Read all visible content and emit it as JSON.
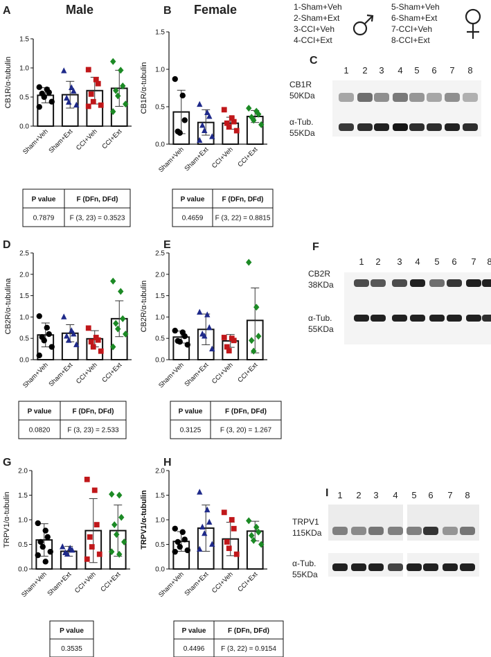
{
  "headers": {
    "male": "Male",
    "female": "Female"
  },
  "legend": {
    "groups": [
      "1-Sham+Veh",
      "2-Sham+Ext",
      "3-CCI+Veh",
      "4-CCI+Ext",
      "5-Sham+Veh",
      "6-Sham+Ext",
      "7-CCI+Veh",
      "8-CCI+Ext"
    ],
    "male_symbol": "♂",
    "female_symbol": "♀"
  },
  "colors": {
    "sham_veh": "#000000",
    "sham_ext": "#1f2a8a",
    "cci_veh": "#c0171a",
    "cci_ext": "#1c8a25"
  },
  "chart_data": [
    {
      "panel": "A",
      "type": "bar",
      "ylabel": "CB1R/α-tubulin",
      "ylim": [
        0,
        1.5
      ],
      "yticks": [
        "0.0",
        "0.5",
        "1.0",
        "1.5"
      ],
      "categories": [
        "Sham+Veh",
        "Sham+Ext",
        "CCI+Veh",
        "CCI+Ext"
      ],
      "means": [
        0.53,
        0.54,
        0.61,
        0.65
      ],
      "sd": [
        0.13,
        0.23,
        0.23,
        0.31
      ],
      "points": [
        [
          0.67,
          0.63,
          0.58,
          0.56,
          0.5,
          0.42,
          0.33
        ],
        [
          0.95,
          0.66,
          0.6,
          0.48,
          0.41,
          0.36
        ],
        [
          0.97,
          0.8,
          0.73,
          0.55,
          0.42,
          0.36,
          0.34
        ],
        [
          1.11,
          0.96,
          0.69,
          0.61,
          0.52,
          0.38,
          0.25
        ]
      ],
      "stats": {
        "p_header": "P value",
        "f_header": "F (DFn, DFd)",
        "p": "0.7879",
        "f": "F (3, 23) = 0.3523"
      }
    },
    {
      "panel": "B",
      "type": "bar",
      "ylabel": "CB1R/α-tubulin",
      "ylim": [
        0,
        1.5
      ],
      "yticks": [
        "0.0",
        "0.5",
        "1.0",
        "1.5"
      ],
      "categories": [
        "Sham+Veh",
        "Sham+Ext",
        "CCI+Veh",
        "CCI+Ext"
      ],
      "means": [
        0.43,
        0.29,
        0.28,
        0.37
      ],
      "sd": [
        0.29,
        0.17,
        0.08,
        0.08
      ],
      "points": [
        [
          0.87,
          0.65,
          0.32,
          0.17,
          0.15
        ],
        [
          0.53,
          0.42,
          0.37,
          0.25,
          0.18,
          0.1,
          0.05
        ],
        [
          0.46,
          0.35,
          0.3,
          0.28,
          0.23,
          0.18
        ],
        [
          0.48,
          0.44,
          0.4,
          0.36,
          0.32,
          0.26
        ]
      ],
      "stats": {
        "p_header": "P value",
        "f_header": "F (DFn, DFd)",
        "p": "0.4659",
        "f": "F (3, 22) = 0.8815"
      }
    },
    {
      "panel": "D",
      "type": "bar",
      "ylabel": "CB2R/α-tubulina",
      "ylim": [
        0,
        2.5
      ],
      "yticks": [
        "0.0",
        "0.5",
        "1.0",
        "1.5",
        "2.0",
        "2.5"
      ],
      "categories": [
        "Sham+Veh",
        "Sham+Ext",
        "CCI+Veh",
        "CCI+Ext"
      ],
      "means": [
        0.58,
        0.62,
        0.49,
        0.96
      ],
      "sd": [
        0.28,
        0.2,
        0.19,
        0.42
      ],
      "points": [
        [
          1.02,
          0.75,
          0.6,
          0.53,
          0.45,
          0.3,
          0.1
        ],
        [
          1.0,
          0.68,
          0.6,
          0.55,
          0.45,
          0.35
        ],
        [
          0.74,
          0.52,
          0.46,
          0.42,
          0.3,
          0.2
        ],
        [
          1.84,
          1.6,
          0.96,
          0.85,
          0.72,
          0.6,
          0.3
        ]
      ],
      "stats": {
        "p_header": "P value",
        "f_header": "F (DFn, DFd)",
        "p": "0.0820",
        "f": "F (3, 23) = 2.533"
      }
    },
    {
      "panel": "E",
      "type": "bar",
      "ylabel": "CB2R/α-tubulin",
      "ylim": [
        0,
        2.5
      ],
      "yticks": [
        "0.0",
        "0.5",
        "1.0",
        "1.5",
        "2.0",
        "2.5"
      ],
      "categories": [
        "Sham+Veh",
        "Sham+Ext",
        "CCI+Veh",
        "CCI+Ext"
      ],
      "means": [
        0.53,
        0.71,
        0.44,
        0.92
      ],
      "sd": [
        0.14,
        0.36,
        0.15,
        0.76
      ],
      "points": [
        [
          0.68,
          0.64,
          0.55,
          0.44,
          0.42,
          0.35
        ],
        [
          1.11,
          1.05,
          0.75,
          0.6,
          0.55,
          0.25
        ],
        [
          0.52,
          0.5,
          0.45,
          0.3,
          0.21
        ],
        [
          2.28,
          1.23,
          0.55,
          0.45,
          0.2
        ]
      ],
      "stats": {
        "p_header": "P value",
        "f_header": "F (DFn, DFd)",
        "p": "0.3125",
        "f": "F (3, 20) = 1.267"
      }
    },
    {
      "panel": "G",
      "type": "bar",
      "ylabel": "TRPV1/α-tubulin",
      "ylim": [
        0,
        2.0
      ],
      "yticks": [
        "0.0",
        "0.5",
        "1.0",
        "1.5",
        "2.0"
      ],
      "categories": [
        "Sham+Veh",
        "Sham+Ext",
        "CCI+Veh",
        "CCI+Ext"
      ],
      "means": [
        0.59,
        0.36,
        0.78,
        0.78
      ],
      "sd": [
        0.33,
        0.1,
        0.65,
        0.52
      ],
      "points": [
        [
          0.93,
          0.78,
          0.65,
          0.55,
          0.45,
          0.35,
          0.28,
          0.15
        ],
        [
          0.45,
          0.42,
          0.38,
          0.33,
          0.3
        ],
        [
          1.82,
          1.6,
          0.9,
          0.65,
          0.45,
          0.3,
          0.2
        ],
        [
          1.52,
          1.5,
          1.05,
          0.9,
          0.7,
          0.55,
          0.35,
          0.3
        ]
      ],
      "stats": {
        "p_header": "P value",
        "p": "0.3535"
      }
    },
    {
      "panel": "H",
      "type": "bar",
      "ylabel": "TRPV1/α-tubulin",
      "ylim": [
        0,
        2.0
      ],
      "yticks": [
        "0.0",
        "0.5",
        "1.0",
        "1.5",
        "2.0"
      ],
      "categories": [
        "Sham+Veh",
        "Sham+Ext",
        "CCI+Veh",
        "CCI+Ext"
      ],
      "means": [
        0.56,
        0.83,
        0.61,
        0.77
      ],
      "sd": [
        0.2,
        0.47,
        0.34,
        0.2
      ],
      "points": [
        [
          0.82,
          0.75,
          0.6,
          0.55,
          0.45,
          0.38,
          0.35
        ],
        [
          1.56,
          1.2,
          0.95,
          0.85,
          0.72,
          0.5,
          0.4
        ],
        [
          1.15,
          1.0,
          0.82,
          0.55,
          0.42,
          0.3
        ],
        [
          0.98,
          0.85,
          0.75,
          0.68,
          0.58,
          0.5
        ]
      ],
      "stats": {
        "p_header": "P value",
        "f_header": "F (DFn, DFd)",
        "p": "0.4496",
        "f": "F (3, 22) = 0.9154"
      }
    }
  ],
  "blots": [
    {
      "panel": "C",
      "lanes": [
        "1",
        "2",
        "3",
        "4",
        "5",
        "6",
        "7",
        "8"
      ],
      "target": "CB1R",
      "target_kda": "50KDa",
      "control": "α-Tub.",
      "control_kda": "55KDa"
    },
    {
      "panel": "F",
      "lanes": [
        "1",
        "2",
        "3",
        "4",
        "5",
        "6",
        "7",
        "8"
      ],
      "target": "CB2R",
      "target_kda": "38KDa",
      "control": "α-Tub.",
      "control_kda": "55KDa"
    },
    {
      "panel": "I",
      "lanes": [
        "1",
        "2",
        "3",
        "4",
        "5",
        "6",
        "7",
        "8"
      ],
      "target": "TRPV1",
      "target_kda": "115KDa",
      "control": "α-Tub.",
      "control_kda": "55KDa"
    }
  ]
}
